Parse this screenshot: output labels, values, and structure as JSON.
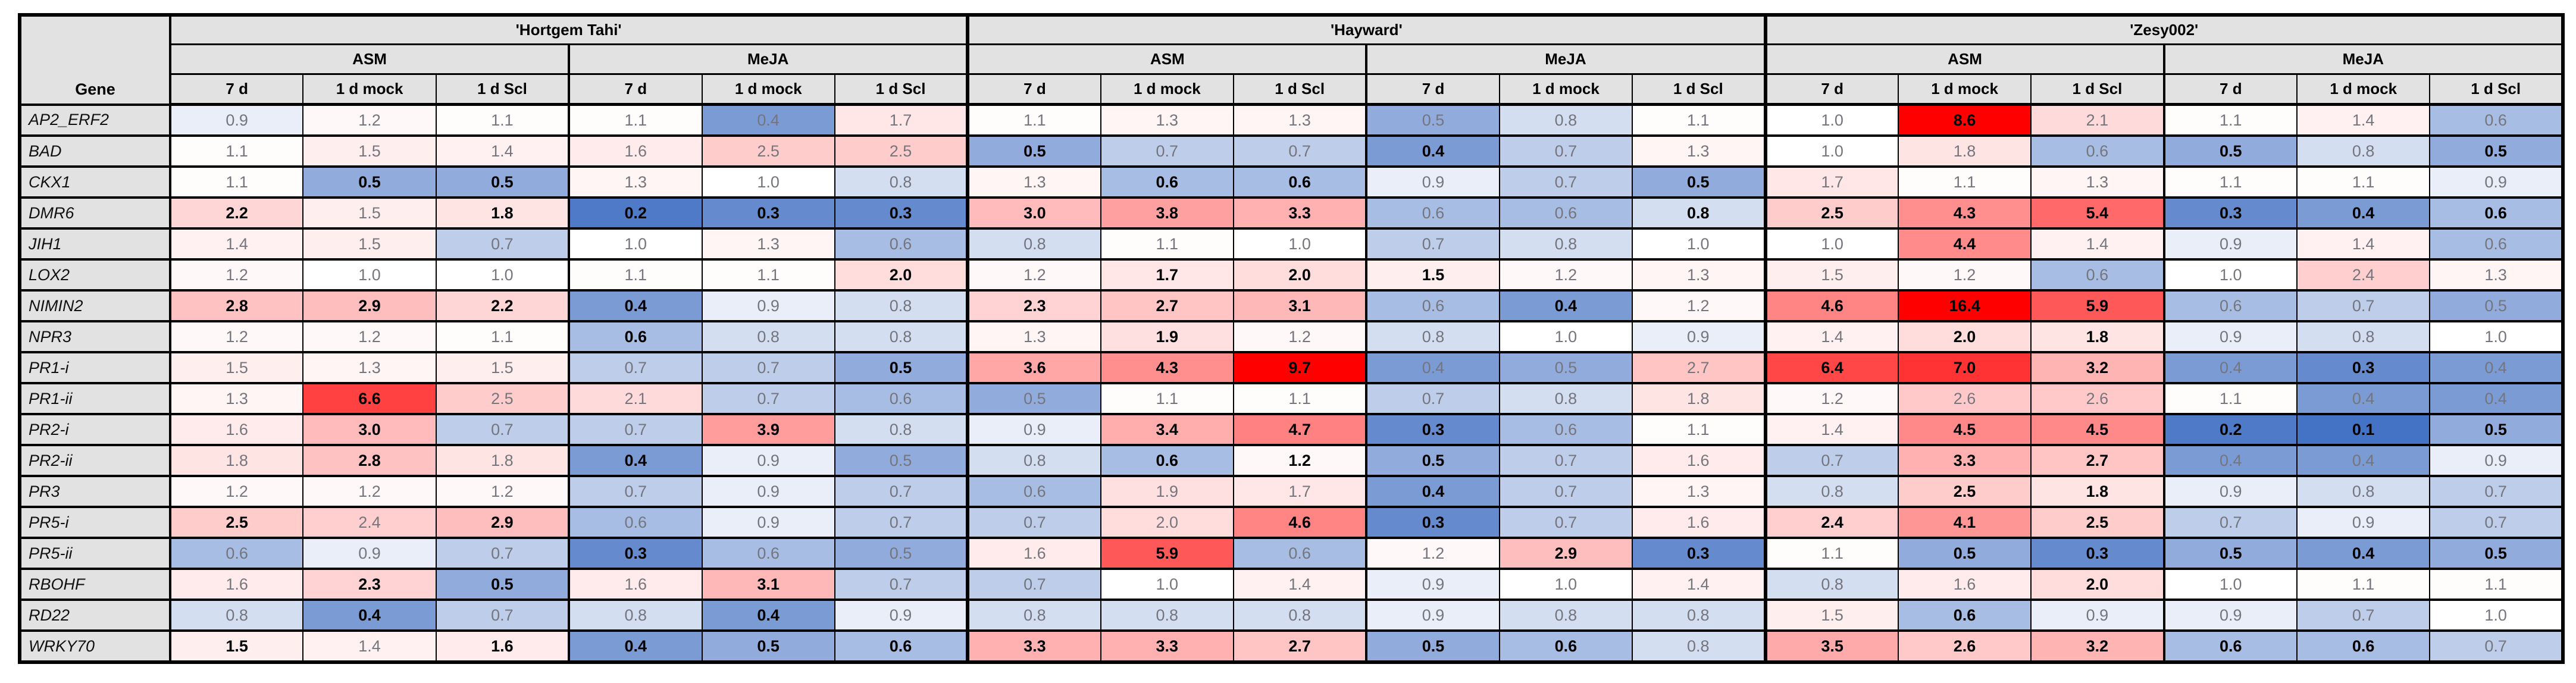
{
  "table": {
    "gene_column_header": "Gene"
  },
  "chart_data": {
    "type": "heatmap",
    "row_label": "Gene",
    "cultivars": [
      "'Hortgem Tahi'",
      "'Hayward'",
      "'Zesy002'"
    ],
    "treatments": [
      "ASM",
      "MeJA"
    ],
    "timepoints": [
      "7 d",
      "1 d mock",
      "1 d  Scl"
    ],
    "column_order": "for each cultivar: ASM(7 d, 1 d mock, 1 d Scl) then MeJA(7 d, 1 d mock, 1 d Scl)",
    "colorscale": {
      "low": "#4472C4",
      "mid": "#FFFFFF",
      "high": "#FF0000",
      "midpoint": 1.0
    },
    "bold_means": "black bold value; non-bold values rendered grey",
    "rows": [
      {
        "gene": "AP2_ERF2",
        "values": [
          0.9,
          1.2,
          1.1,
          1.1,
          0.4,
          1.7,
          1.1,
          1.3,
          1.3,
          0.5,
          0.8,
          1.1,
          1.0,
          8.6,
          2.1,
          1.1,
          1.4,
          0.6
        ],
        "bold": [
          0,
          0,
          0,
          0,
          0,
          0,
          0,
          0,
          0,
          0,
          0,
          0,
          0,
          1,
          0,
          0,
          0,
          0
        ]
      },
      {
        "gene": "BAD",
        "values": [
          1.1,
          1.5,
          1.4,
          1.6,
          2.5,
          2.5,
          0.5,
          0.7,
          0.7,
          0.4,
          0.7,
          1.3,
          1.0,
          1.8,
          0.6,
          0.5,
          0.8,
          0.5
        ],
        "bold": [
          0,
          0,
          0,
          0,
          0,
          0,
          1,
          0,
          0,
          1,
          0,
          0,
          0,
          0,
          0,
          1,
          0,
          1
        ]
      },
      {
        "gene": "CKX1",
        "values": [
          1.1,
          0.5,
          0.5,
          1.3,
          1.0,
          0.8,
          1.3,
          0.6,
          0.6,
          0.9,
          0.7,
          0.5,
          1.7,
          1.1,
          1.3,
          1.1,
          1.1,
          0.9
        ],
        "bold": [
          0,
          1,
          1,
          0,
          0,
          0,
          0,
          1,
          1,
          0,
          0,
          1,
          0,
          0,
          0,
          0,
          0,
          0
        ]
      },
      {
        "gene": "DMR6",
        "values": [
          2.2,
          1.5,
          1.8,
          0.2,
          0.3,
          0.3,
          3.0,
          3.8,
          3.3,
          0.6,
          0.6,
          0.8,
          2.5,
          4.3,
          5.4,
          0.3,
          0.4,
          0.6
        ],
        "bold": [
          1,
          0,
          1,
          1,
          1,
          1,
          1,
          1,
          1,
          0,
          0,
          1,
          1,
          1,
          1,
          1,
          1,
          1
        ]
      },
      {
        "gene": "JIH1",
        "values": [
          1.4,
          1.5,
          0.7,
          1.0,
          1.3,
          0.6,
          0.8,
          1.1,
          1.0,
          0.7,
          0.8,
          1.0,
          1.0,
          4.4,
          1.4,
          0.9,
          1.4,
          0.6
        ],
        "bold": [
          0,
          0,
          0,
          0,
          0,
          0,
          0,
          0,
          0,
          0,
          0,
          0,
          0,
          1,
          0,
          0,
          0,
          0
        ]
      },
      {
        "gene": "LOX2",
        "values": [
          1.2,
          1.0,
          1.0,
          1.1,
          1.1,
          2.0,
          1.2,
          1.7,
          2.0,
          1.5,
          1.2,
          1.3,
          1.5,
          1.2,
          0.6,
          1.0,
          2.4,
          1.3
        ],
        "bold": [
          0,
          0,
          0,
          0,
          0,
          1,
          0,
          1,
          1,
          1,
          0,
          0,
          0,
          0,
          0,
          0,
          0,
          0
        ]
      },
      {
        "gene": "NIMIN2",
        "values": [
          2.8,
          2.9,
          2.2,
          0.4,
          0.9,
          0.8,
          2.3,
          2.7,
          3.1,
          0.6,
          0.4,
          1.2,
          4.6,
          16.4,
          5.9,
          0.6,
          0.7,
          0.5
        ],
        "bold": [
          1,
          1,
          1,
          1,
          0,
          0,
          1,
          1,
          1,
          0,
          1,
          0,
          1,
          1,
          1,
          0,
          0,
          0
        ]
      },
      {
        "gene": "NPR3",
        "values": [
          1.2,
          1.2,
          1.1,
          0.6,
          0.8,
          0.8,
          1.3,
          1.9,
          1.2,
          0.8,
          1.0,
          0.9,
          1.4,
          2.0,
          1.8,
          0.9,
          0.8,
          1.0
        ],
        "bold": [
          0,
          0,
          0,
          1,
          0,
          0,
          0,
          1,
          0,
          0,
          0,
          0,
          0,
          1,
          1,
          0,
          0,
          0
        ]
      },
      {
        "gene": "PR1-i",
        "values": [
          1.5,
          1.3,
          1.5,
          0.7,
          0.7,
          0.5,
          3.6,
          4.3,
          9.7,
          0.4,
          0.5,
          2.7,
          6.4,
          7.0,
          3.2,
          0.4,
          0.3,
          0.4
        ],
        "bold": [
          0,
          0,
          0,
          0,
          0,
          1,
          1,
          1,
          1,
          0,
          0,
          0,
          1,
          1,
          1,
          0,
          1,
          0
        ]
      },
      {
        "gene": "PR1-ii",
        "values": [
          1.3,
          6.6,
          2.5,
          2.1,
          0.7,
          0.6,
          0.5,
          1.1,
          1.1,
          0.7,
          0.8,
          1.8,
          1.2,
          2.6,
          2.6,
          1.1,
          0.4,
          0.4
        ],
        "bold": [
          0,
          1,
          0,
          0,
          0,
          0,
          0,
          0,
          0,
          0,
          0,
          0,
          0,
          0,
          0,
          0,
          0,
          0
        ]
      },
      {
        "gene": "PR2-i",
        "values": [
          1.6,
          3.0,
          0.7,
          0.7,
          3.9,
          0.8,
          0.9,
          3.4,
          4.7,
          0.3,
          0.6,
          1.1,
          1.4,
          4.5,
          4.5,
          0.2,
          0.1,
          0.5
        ],
        "bold": [
          0,
          1,
          0,
          0,
          1,
          0,
          0,
          1,
          1,
          1,
          0,
          0,
          0,
          1,
          1,
          1,
          1,
          1
        ]
      },
      {
        "gene": "PR2-ii",
        "values": [
          1.8,
          2.8,
          1.8,
          0.4,
          0.9,
          0.5,
          0.8,
          0.6,
          1.2,
          0.5,
          0.7,
          1.6,
          0.7,
          3.3,
          2.7,
          0.4,
          0.4,
          0.9
        ],
        "bold": [
          0,
          1,
          0,
          1,
          0,
          0,
          0,
          1,
          1,
          1,
          0,
          0,
          0,
          1,
          1,
          0,
          0,
          0
        ]
      },
      {
        "gene": "PR3",
        "values": [
          1.2,
          1.2,
          1.2,
          0.7,
          0.9,
          0.7,
          0.6,
          1.9,
          1.7,
          0.4,
          0.7,
          1.3,
          0.8,
          2.5,
          1.8,
          0.9,
          0.8,
          0.7
        ],
        "bold": [
          0,
          0,
          0,
          0,
          0,
          0,
          0,
          0,
          0,
          1,
          0,
          0,
          0,
          1,
          1,
          0,
          0,
          0
        ]
      },
      {
        "gene": "PR5-i",
        "values": [
          2.5,
          2.4,
          2.9,
          0.6,
          0.9,
          0.7,
          0.7,
          2.0,
          4.6,
          0.3,
          0.7,
          1.6,
          2.4,
          4.1,
          2.5,
          0.7,
          0.9,
          0.7
        ],
        "bold": [
          1,
          0,
          1,
          0,
          0,
          0,
          0,
          0,
          1,
          1,
          0,
          0,
          1,
          1,
          1,
          0,
          0,
          0
        ]
      },
      {
        "gene": "PR5-ii",
        "values": [
          0.6,
          0.9,
          0.7,
          0.3,
          0.6,
          0.5,
          1.6,
          5.9,
          0.6,
          1.2,
          2.9,
          0.3,
          1.1,
          0.5,
          0.3,
          0.5,
          0.4,
          0.5
        ],
        "bold": [
          0,
          0,
          0,
          1,
          0,
          0,
          0,
          1,
          0,
          0,
          1,
          1,
          0,
          1,
          1,
          1,
          1,
          1
        ]
      },
      {
        "gene": "RBOHF",
        "values": [
          1.6,
          2.3,
          0.5,
          1.6,
          3.1,
          0.7,
          0.7,
          1.0,
          1.4,
          0.9,
          1.0,
          1.4,
          0.8,
          1.6,
          2.0,
          1.0,
          1.1,
          1.1
        ],
        "bold": [
          0,
          1,
          1,
          0,
          1,
          0,
          0,
          0,
          0,
          0,
          0,
          0,
          0,
          0,
          1,
          0,
          0,
          0
        ]
      },
      {
        "gene": "RD22",
        "values": [
          0.8,
          0.4,
          0.7,
          0.8,
          0.4,
          0.9,
          0.8,
          0.8,
          0.8,
          0.9,
          0.8,
          0.8,
          1.5,
          0.6,
          0.9,
          0.9,
          0.7,
          1.0
        ],
        "bold": [
          0,
          1,
          0,
          0,
          1,
          0,
          0,
          0,
          0,
          0,
          0,
          0,
          0,
          1,
          0,
          0,
          0,
          0
        ]
      },
      {
        "gene": "WRKY70",
        "values": [
          1.5,
          1.4,
          1.6,
          0.4,
          0.5,
          0.6,
          3.3,
          3.3,
          2.7,
          0.5,
          0.6,
          0.8,
          3.5,
          2.6,
          3.2,
          0.6,
          0.6,
          0.7
        ],
        "bold": [
          1,
          0,
          1,
          1,
          1,
          1,
          1,
          1,
          1,
          1,
          1,
          0,
          1,
          1,
          1,
          1,
          1,
          0
        ]
      }
    ]
  }
}
